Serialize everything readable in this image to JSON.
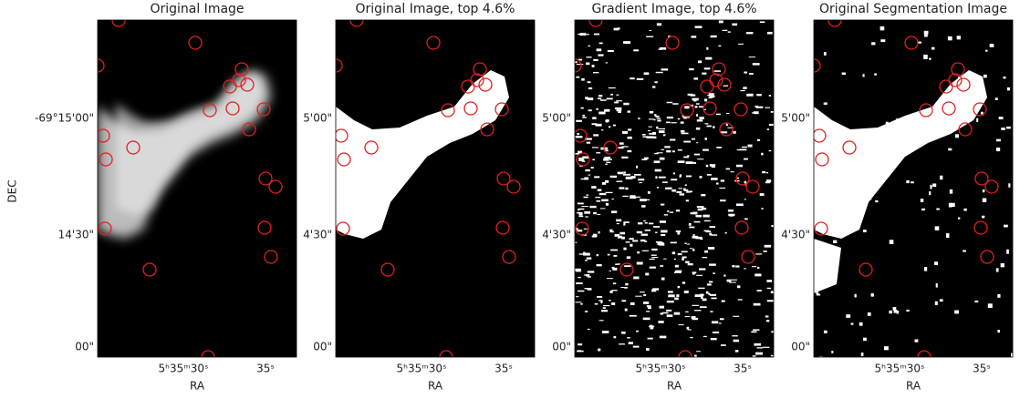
{
  "figure": {
    "y_label": "DEC",
    "panels": [
      {
        "title": "Original Image",
        "yticks": [
          "-69°15'00\"",
          "14'30\"",
          "00\""
        ],
        "xticks": [
          "5ʰ35ᵐ30ˢ",
          "35ˢ"
        ],
        "x_label": "RA"
      },
      {
        "title": "Original Image, top 4.6%",
        "yticks": [
          "5'00\"",
          "4'30\"",
          "00\""
        ],
        "xticks": [
          "5ʰ35ᵐ30ˢ",
          "35ˢ"
        ],
        "x_label": "RA"
      },
      {
        "title": "Gradient Image, top 4.6%",
        "yticks": [
          "5'00\"",
          "4'30\"",
          "00\""
        ],
        "xticks": [
          "5ʰ35ᵐ30ˢ",
          "35ˢ"
        ],
        "x_label": "RA"
      },
      {
        "title": "Original Segmentation Image",
        "yticks": [
          "5'00\"",
          "4'30\"",
          "00\""
        ],
        "xticks": [
          "5ʰ35ᵐ30ˢ",
          "35ˢ"
        ],
        "x_label": "RA"
      }
    ]
  }
}
